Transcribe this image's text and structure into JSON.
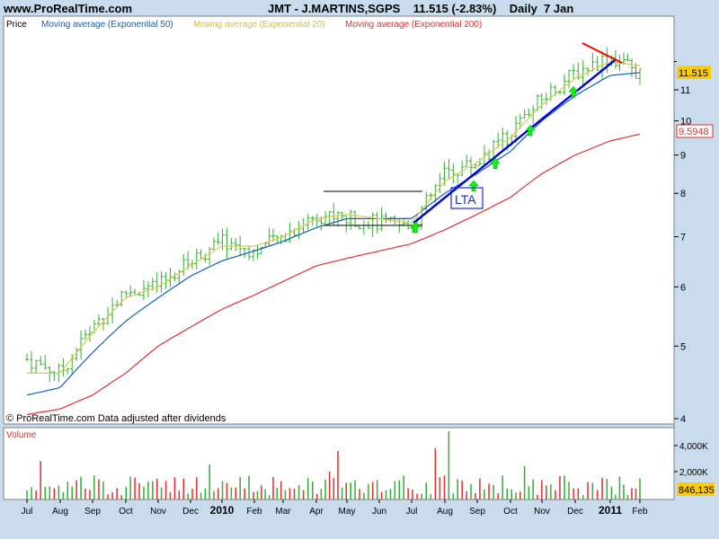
{
  "header": {
    "site": "www.ProRealTime.com",
    "title": "JMT - J.MARTINS,SGPS    11.515 (-2.83%)    Daily  7 Jan"
  },
  "price_panel": {
    "label": "Price",
    "legend": [
      {
        "text": "Moving average (Exponential 50)",
        "color": "#1060c0"
      },
      {
        "text": "Moving average (Exponential 20)",
        "color": "#e0c850"
      },
      {
        "text": "Moving average (Exponential 200)",
        "color": "#e03030"
      }
    ],
    "footer": "© ProRealTime.com  Data adjusted after dividends",
    "annotation": "LTA",
    "price_tags": [
      "11.515",
      "9.5948"
    ]
  },
  "volume_panel": {
    "label": "Volume",
    "ticks": [
      "4,000K",
      "2,000K"
    ],
    "last_tag": "846,135"
  },
  "colors": {
    "background": "#c8dced",
    "panel": "#ffffff",
    "candle": "#30b030",
    "ema50": "#1060c0",
    "ema20": "#e0c850",
    "ema200": "#e03030",
    "trendline": "#0000dd",
    "resistance": "#ff0000",
    "arrow": "#00ff00"
  },
  "chart_data": {
    "type": "line",
    "log_scale": true,
    "x": [
      "Jul",
      "Aug",
      "Sep",
      "Oct",
      "Nov",
      "Dec",
      "2010",
      "Feb",
      "Mar",
      "Apr",
      "May",
      "Jun",
      "Jul",
      "Aug",
      "Sep",
      "Oct",
      "Nov",
      "Dec",
      "2011",
      "Feb"
    ],
    "ylim": [
      4,
      13
    ],
    "yticks": [
      4,
      5,
      6,
      7,
      8,
      9,
      10,
      11
    ],
    "series": [
      {
        "name": "Price",
        "values": [
          4.8,
          4.6,
          5.3,
          5.9,
          6.0,
          6.5,
          6.9,
          6.7,
          7.0,
          7.5,
          7.4,
          7.3,
          7.2,
          8.5,
          8.8,
          9.6,
          10.7,
          11.6,
          12.2,
          11.5
        ]
      },
      {
        "name": "Moving average (Exponential 50)",
        "values": [
          4.3,
          4.4,
          4.9,
          5.4,
          5.8,
          6.2,
          6.5,
          6.7,
          6.9,
          7.2,
          7.4,
          7.4,
          7.4,
          8.0,
          8.5,
          9.1,
          10.0,
          10.8,
          11.5,
          11.6
        ]
      },
      {
        "name": "Moving average (Exponential 20)",
        "values": [
          4.6,
          4.6,
          5.2,
          5.8,
          6.0,
          6.4,
          6.8,
          6.8,
          7.0,
          7.4,
          7.5,
          7.4,
          7.3,
          8.3,
          8.8,
          9.5,
          10.5,
          11.4,
          12.0,
          11.85
        ]
      },
      {
        "name": "Moving average (Exponential 200)",
        "values": [
          4.05,
          4.12,
          4.3,
          4.6,
          5.0,
          5.3,
          5.6,
          5.85,
          6.1,
          6.4,
          6.55,
          6.7,
          6.85,
          7.15,
          7.5,
          7.9,
          8.5,
          9.0,
          9.4,
          9.6
        ]
      }
    ],
    "last_price": 11.515,
    "change_pct": -2.83,
    "volume": {
      "unit": "K",
      "ylim": [
        0,
        4800
      ],
      "last": 846135
    }
  }
}
